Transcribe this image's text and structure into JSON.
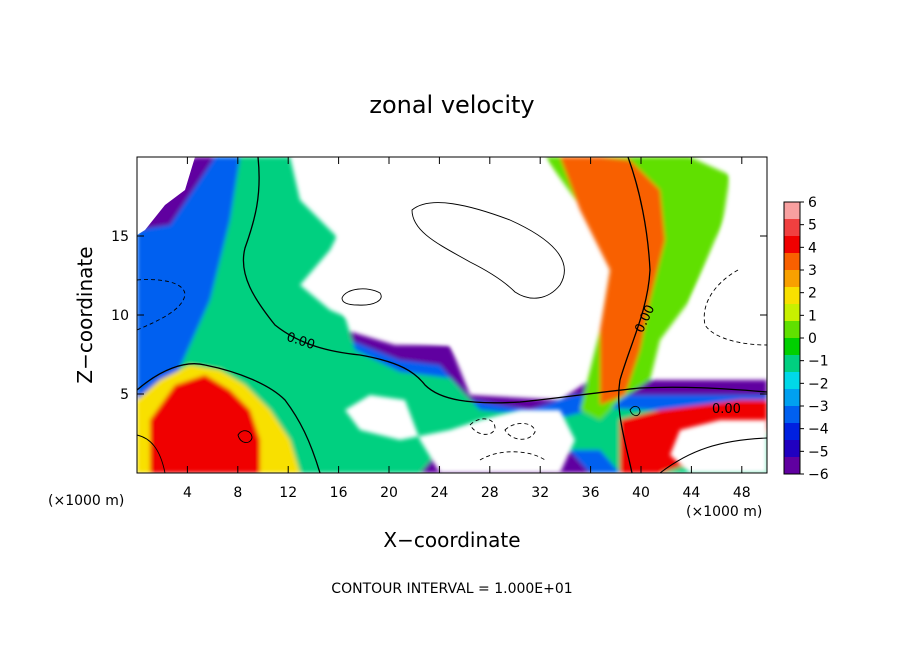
{
  "chart_data": {
    "type": "heatmap",
    "title": "zonal velocity",
    "xlabel": "X−coordinate",
    "ylabel": "Z−coordinate",
    "x_unit_left": "(×1000 m)",
    "x_unit_right": "(×1000 m)",
    "footer": "CONTOUR INTERVAL = 1.000E+01",
    "xlim": [
      0,
      50
    ],
    "ylim": [
      0,
      20
    ],
    "x_ticks": [
      4,
      8,
      12,
      16,
      20,
      24,
      28,
      32,
      36,
      40,
      44,
      48
    ],
    "y_ticks": [
      5,
      10,
      15
    ],
    "colorbar": {
      "min": -6,
      "max": 6,
      "tick_labels": [
        "6",
        "5",
        "4",
        "3",
        "2",
        "1",
        "0",
        "−1",
        "−2",
        "−3",
        "−4",
        "−5",
        "−6"
      ],
      "colors": [
        "#f8a0a0",
        "#f04040",
        "#f00000",
        "#f86000",
        "#f8a000",
        "#f8e000",
        "#c8f000",
        "#60e000",
        "#00d000",
        "#00d080",
        "#00d8e8",
        "#00a0f0",
        "#0060f0",
        "#0020e0",
        "#2000c0",
        "#6000a0"
      ]
    },
    "contour_labels": [
      "0.00",
      "0.00",
      "0.00"
    ]
  }
}
